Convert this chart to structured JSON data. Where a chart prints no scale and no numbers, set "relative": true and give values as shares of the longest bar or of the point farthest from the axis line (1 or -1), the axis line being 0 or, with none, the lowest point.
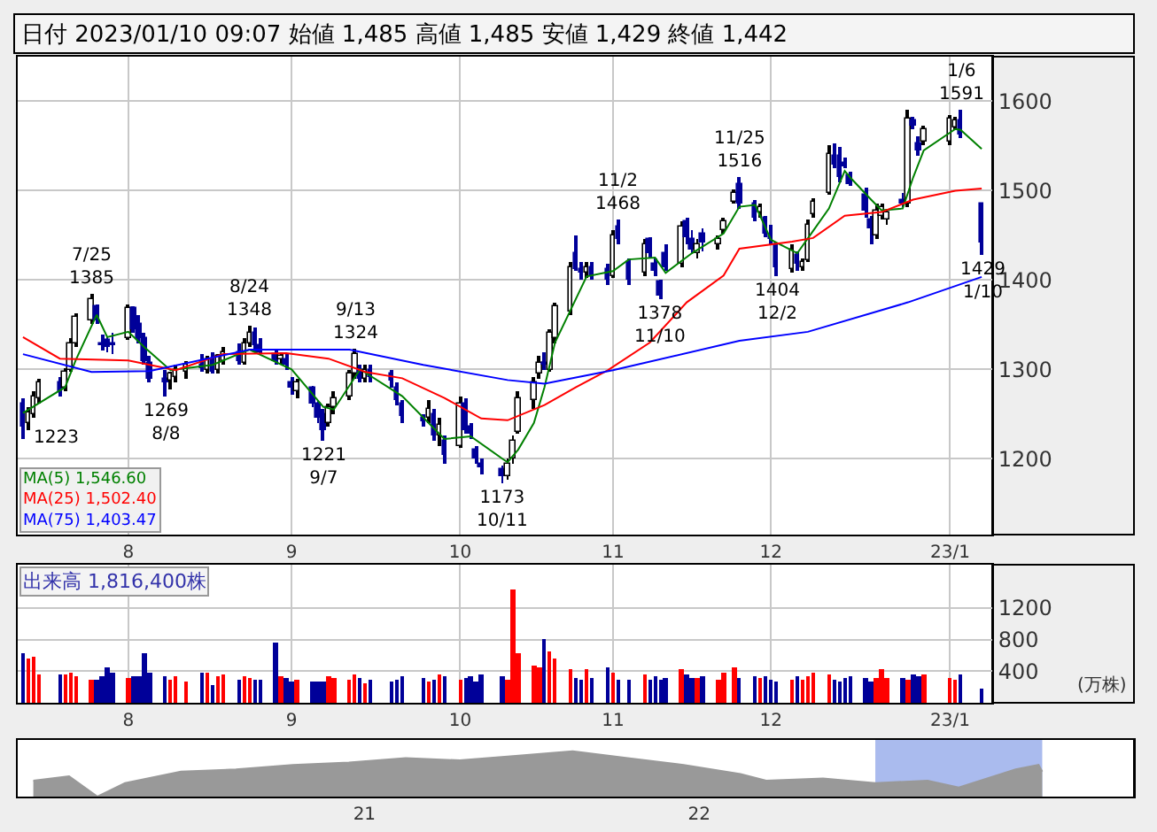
{
  "chart_data": [
    {
      "type": "candlestick",
      "title": "日付 2023/01/10 09:07 始値 1,485 高値 1,485 安値 1,429 終値 1,442",
      "x": [
        "2022-07-12",
        "2022-07-13",
        "2022-07-14",
        "2022-07-15",
        "2022-07-19",
        "2022-07-20",
        "2022-07-21",
        "2022-07-22",
        "2022-07-25",
        "2022-07-26",
        "2022-07-27",
        "2022-07-28",
        "2022-07-29",
        "2022-08-01",
        "2022-08-02",
        "2022-08-03",
        "2022-08-04",
        "2022-08-05",
        "2022-08-08",
        "2022-08-09",
        "2022-08-10",
        "2022-08-12",
        "2022-08-15",
        "2022-08-16",
        "2022-08-17",
        "2022-08-18",
        "2022-08-19",
        "2022-08-22",
        "2022-08-23",
        "2022-08-24",
        "2022-08-25",
        "2022-08-26",
        "2022-08-29",
        "2022-08-30",
        "2022-08-31",
        "2022-09-01",
        "2022-09-02",
        "2022-09-05",
        "2022-09-06",
        "2022-09-07",
        "2022-09-08",
        "2022-09-09",
        "2022-09-12",
        "2022-09-13",
        "2022-09-14",
        "2022-09-15",
        "2022-09-16",
        "2022-09-20",
        "2022-09-21",
        "2022-09-22",
        "2022-09-26",
        "2022-09-27",
        "2022-09-28",
        "2022-09-29",
        "2022-09-30",
        "2022-10-03",
        "2022-10-04",
        "2022-10-05",
        "2022-10-06",
        "2022-10-07",
        "2022-10-11",
        "2022-10-12",
        "2022-10-13",
        "2022-10-14",
        "2022-10-17",
        "2022-10-18",
        "2022-10-19",
        "2022-10-20",
        "2022-10-21",
        "2022-10-24",
        "2022-10-25",
        "2022-10-26",
        "2022-10-27",
        "2022-10-28",
        "2022-10-31",
        "2022-11-01",
        "2022-11-02",
        "2022-11-04",
        "2022-11-07",
        "2022-11-08",
        "2022-11-09",
        "2022-11-10",
        "2022-11-11",
        "2022-11-14",
        "2022-11-15",
        "2022-11-16",
        "2022-11-17",
        "2022-11-18",
        "2022-11-21",
        "2022-11-22",
        "2022-11-24",
        "2022-11-25",
        "2022-11-28",
        "2022-11-29",
        "2022-11-30",
        "2022-12-01",
        "2022-12-02",
        "2022-12-05",
        "2022-12-06",
        "2022-12-07",
        "2022-12-08",
        "2022-12-09",
        "2022-12-12",
        "2022-12-13",
        "2022-12-14",
        "2022-12-15",
        "2022-12-16",
        "2022-12-19",
        "2022-12-20",
        "2022-12-21",
        "2022-12-22",
        "2022-12-23",
        "2022-12-26",
        "2022-12-27",
        "2022-12-28",
        "2022-12-29",
        "2022-12-30",
        "2023-01-04",
        "2023-01-05",
        "2023-01-06",
        "2023-01-10"
      ],
      "ohlc": [
        [
          1262,
          1268,
          1223,
          1235
        ],
        [
          1240,
          1258,
          1232,
          1252
        ],
        [
          1250,
          1275,
          1245,
          1270
        ],
        [
          1268,
          1290,
          1262,
          1285
        ],
        [
          1285,
          1292,
          1270,
          1275
        ],
        [
          1280,
          1302,
          1275,
          1298
        ],
        [
          1300,
          1335,
          1298,
          1330
        ],
        [
          1330,
          1362,
          1325,
          1358
        ],
        [
          1355,
          1385,
          1350,
          1378
        ],
        [
          1370,
          1372,
          1350,
          1355
        ],
        [
          1330,
          1338,
          1322,
          1328
        ],
        [
          1332,
          1336,
          1320,
          1325
        ],
        [
          1330,
          1340,
          1318,
          1328
        ],
        [
          1335,
          1372,
          1332,
          1368
        ],
        [
          1368,
          1370,
          1340,
          1345
        ],
        [
          1350,
          1360,
          1330,
          1335
        ],
        [
          1335,
          1340,
          1305,
          1310
        ],
        [
          1308,
          1315,
          1285,
          1290
        ],
        [
          1290,
          1300,
          1269,
          1285
        ],
        [
          1288,
          1298,
          1278,
          1295
        ],
        [
          1292,
          1305,
          1285,
          1300
        ],
        [
          1298,
          1310,
          1290,
          1305
        ],
        [
          1305,
          1318,
          1298,
          1302
        ],
        [
          1300,
          1315,
          1295,
          1312
        ],
        [
          1312,
          1320,
          1295,
          1298
        ],
        [
          1300,
          1318,
          1296,
          1315
        ],
        [
          1310,
          1325,
          1305,
          1320
        ],
        [
          1320,
          1330,
          1305,
          1310
        ],
        [
          1308,
          1335,
          1305,
          1330
        ],
        [
          1330,
          1348,
          1325,
          1340
        ],
        [
          1340,
          1346,
          1320,
          1328
        ],
        [
          1328,
          1335,
          1318,
          1320
        ],
        [
          1318,
          1322,
          1305,
          1310
        ],
        [
          1312,
          1320,
          1305,
          1315
        ],
        [
          1312,
          1318,
          1300,
          1305
        ],
        [
          1285,
          1292,
          1272,
          1280
        ],
        [
          1275,
          1290,
          1268,
          1285
        ],
        [
          1280,
          1282,
          1258,
          1262
        ],
        [
          1262,
          1265,
          1240,
          1245
        ],
        [
          1250,
          1255,
          1221,
          1232
        ],
        [
          1240,
          1262,
          1235,
          1258
        ],
        [
          1258,
          1275,
          1250,
          1268
        ],
        [
          1270,
          1300,
          1265,
          1295
        ],
        [
          1295,
          1324,
          1290,
          1318
        ],
        [
          1300,
          1305,
          1285,
          1290
        ],
        [
          1290,
          1305,
          1285,
          1300
        ],
        [
          1300,
          1305,
          1285,
          1292
        ],
        [
          1295,
          1300,
          1280,
          1288
        ],
        [
          1280,
          1285,
          1260,
          1265
        ],
        [
          1262,
          1265,
          1240,
          1248
        ],
        [
          1245,
          1250,
          1235,
          1242
        ],
        [
          1245,
          1265,
          1240,
          1255
        ],
        [
          1250,
          1255,
          1220,
          1225
        ],
        [
          1225,
          1245,
          1215,
          1238
        ],
        [
          1220,
          1225,
          1195,
          1205
        ],
        [
          1215,
          1270,
          1212,
          1262
        ],
        [
          1262,
          1268,
          1228,
          1232
        ],
        [
          1235,
          1240,
          1222,
          1228
        ],
        [
          1210,
          1215,
          1195,
          1200
        ],
        [
          1195,
          1200,
          1182,
          1190
        ],
        [
          1188,
          1192,
          1173,
          1180
        ],
        [
          1180,
          1200,
          1176,
          1195
        ],
        [
          1200,
          1225,
          1195,
          1220
        ],
        [
          1230,
          1275,
          1228,
          1268
        ],
        [
          1265,
          1292,
          1255,
          1285
        ],
        [
          1295,
          1315,
          1290,
          1308
        ],
        [
          1308,
          1320,
          1300,
          1305
        ],
        [
          1300,
          1345,
          1298,
          1340
        ],
        [
          1335,
          1375,
          1330,
          1370
        ],
        [
          1365,
          1420,
          1360,
          1415
        ],
        [
          1430,
          1450,
          1410,
          1412
        ],
        [
          1412,
          1420,
          1400,
          1408
        ],
        [
          1408,
          1420,
          1402,
          1415
        ],
        [
          1415,
          1420,
          1400,
          1405
        ],
        [
          1412,
          1418,
          1395,
          1400
        ],
        [
          1405,
          1455,
          1402,
          1450
        ],
        [
          1460,
          1468,
          1440,
          1445
        ],
        [
          1420,
          1425,
          1395,
          1400
        ],
        [
          1408,
          1445,
          1405,
          1440
        ],
        [
          1445,
          1448,
          1425,
          1430
        ],
        [
          1418,
          1425,
          1405,
          1410
        ],
        [
          1398,
          1400,
          1378,
          1382
        ],
        [
          1430,
          1440,
          1410,
          1415
        ],
        [
          1418,
          1465,
          1415,
          1460
        ],
        [
          1465,
          1470,
          1440,
          1448
        ],
        [
          1445,
          1455,
          1430,
          1435
        ],
        [
          1430,
          1445,
          1425,
          1440
        ],
        [
          1452,
          1458,
          1432,
          1442
        ],
        [
          1440,
          1450,
          1435,
          1445
        ],
        [
          1455,
          1470,
          1452,
          1466
        ],
        [
          1488,
          1502,
          1485,
          1498
        ],
        [
          1508,
          1516,
          1480,
          1485
        ],
        [
          1485,
          1490,
          1465,
          1470
        ],
        [
          1475,
          1485,
          1470,
          1482
        ],
        [
          1470,
          1472,
          1448,
          1452
        ],
        [
          1450,
          1462,
          1440,
          1445
        ],
        [
          1440,
          1442,
          1404,
          1415
        ],
        [
          1412,
          1440,
          1408,
          1435
        ],
        [
          1428,
          1432,
          1410,
          1418
        ],
        [
          1415,
          1425,
          1410,
          1420
        ],
        [
          1422,
          1468,
          1420,
          1462
        ],
        [
          1474,
          1492,
          1470,
          1488
        ],
        [
          1498,
          1550,
          1495,
          1542
        ],
        [
          1540,
          1552,
          1525,
          1530
        ],
        [
          1540,
          1548,
          1510,
          1515
        ],
        [
          1532,
          1538,
          1525,
          1528
        ],
        [
          1518,
          1522,
          1505,
          1508
        ],
        [
          1495,
          1503,
          1470,
          1478
        ],
        [
          1468,
          1472,
          1440,
          1458
        ],
        [
          1450,
          1485,
          1445,
          1478
        ],
        [
          1472,
          1485,
          1468,
          1482
        ],
        [
          1468,
          1480,
          1462,
          1475
        ],
        [
          1490,
          1498,
          1482,
          1485
        ],
        [
          1485,
          1590,
          1482,
          1580
        ],
        [
          1578,
          1582,
          1568,
          1572
        ],
        [
          1552,
          1560,
          1540,
          1545
        ],
        [
          1555,
          1572,
          1550,
          1568
        ],
        [
          1555,
          1585,
          1550,
          1580
        ],
        [
          1570,
          1582,
          1568,
          1578
        ],
        [
          1578,
          1591,
          1558,
          1562
        ],
        [
          1485,
          1485,
          1429,
          1442
        ]
      ],
      "series": [
        {
          "type": "line",
          "name": "MA(5) 1,546.60",
          "color": "#008000",
          "x": [
            "2022-07-12",
            "2022-07-15",
            "2022-07-20",
            "2022-07-22",
            "2022-07-26",
            "2022-07-28",
            "2022-08-01",
            "2022-08-04",
            "2022-08-09",
            "2022-08-17",
            "2022-08-24",
            "2022-09-01",
            "2022-09-07",
            "2022-09-09",
            "2022-09-14",
            "2022-09-22",
            "2022-09-30",
            "2022-10-05",
            "2022-10-11",
            "2022-10-12",
            "2022-10-14",
            "2022-10-17",
            "2022-10-19",
            "2022-10-21",
            "2022-10-27",
            "2022-11-01",
            "2022-11-04",
            "2022-11-09",
            "2022-11-11",
            "2022-11-16",
            "2022-11-22",
            "2022-11-25",
            "2022-11-28",
            "2022-12-01",
            "2022-12-06",
            "2022-12-09",
            "2022-12-12",
            "2022-12-15",
            "2022-12-16",
            "2022-12-20",
            "2022-12-22",
            "2022-12-26",
            "2022-12-28",
            "2022-12-30",
            "2023-01-05",
            "2023-01-06",
            "2023-01-10"
          ],
          "values": [
            1251,
            1262,
            1280,
            1310,
            1361,
            1336,
            1342,
            1325,
            1299,
            1305,
            1322,
            1300,
            1258,
            1255,
            1300,
            1270,
            1222,
            1225,
            1200,
            1196,
            1210,
            1240,
            1280,
            1330,
            1404,
            1410,
            1423,
            1425,
            1408,
            1430,
            1452,
            1482,
            1484,
            1445,
            1430,
            1455,
            1480,
            1522,
            1515,
            1490,
            1478,
            1480,
            1515,
            1545,
            1569,
            1568,
            1546.6
          ]
        },
        {
          "type": "line",
          "name": "MA(25) 1,502.40",
          "color": "#ff0000",
          "x": [
            "2022-07-12",
            "2022-07-19",
            "2022-08-01",
            "2022-08-10",
            "2022-08-19",
            "2022-08-31",
            "2022-09-08",
            "2022-09-15",
            "2022-09-22",
            "2022-09-30",
            "2022-10-07",
            "2022-10-12",
            "2022-10-19",
            "2022-10-25",
            "2022-10-31",
            "2022-11-08",
            "2022-11-15",
            "2022-11-22",
            "2022-11-25",
            "2022-12-05",
            "2022-12-09",
            "2022-12-15",
            "2022-12-22",
            "2022-12-28",
            "2023-01-05",
            "2023-01-10"
          ],
          "values": [
            1336,
            1312,
            1310,
            1299,
            1317,
            1318,
            1312,
            1297,
            1290,
            1268,
            1245,
            1243,
            1260,
            1280,
            1299,
            1330,
            1375,
            1405,
            1435,
            1443,
            1447,
            1472,
            1476,
            1490,
            1500,
            1502.4
          ]
        },
        {
          "type": "line",
          "name": "MA(75) 1,403.47",
          "color": "#0000ff",
          "x": [
            "2022-07-12",
            "2022-07-25",
            "2022-08-05",
            "2022-08-24",
            "2022-09-12",
            "2022-09-26",
            "2022-10-12",
            "2022-10-19",
            "2022-11-01",
            "2022-11-25",
            "2022-12-08",
            "2022-12-27",
            "2023-01-10"
          ],
          "values": [
            1317,
            1297,
            1298,
            1322,
            1322,
            1305,
            1288,
            1284,
            1299,
            1332,
            1342,
            1375,
            1403.47
          ]
        }
      ],
      "annotations": [
        {
          "text": "1223",
          "x": "2022-07-12",
          "y": 1223
        },
        {
          "text": "7/25\n1385",
          "x": "2022-07-25",
          "y": 1385
        },
        {
          "text": "1269\n8/8",
          "x": "2022-08-08",
          "y": 1269
        },
        {
          "text": "8/24\n1348",
          "x": "2022-08-24",
          "y": 1348
        },
        {
          "text": "1221\n9/7",
          "x": "2022-09-07",
          "y": 1221
        },
        {
          "text": "9/13\n1324",
          "x": "2022-09-13",
          "y": 1324
        },
        {
          "text": "1173\n10/11",
          "x": "2022-10-11",
          "y": 1173
        },
        {
          "text": "11/2\n1468",
          "x": "2022-11-02",
          "y": 1468
        },
        {
          "text": "1378\n11/10",
          "x": "2022-11-10",
          "y": 1378
        },
        {
          "text": "11/25\n1516",
          "x": "2022-11-25",
          "y": 1516
        },
        {
          "text": "1404\n12/2",
          "x": "2022-12-02",
          "y": 1404
        },
        {
          "text": "1/6\n1591",
          "x": "2023-01-06",
          "y": 1591
        },
        {
          "text": "1429\n1/10",
          "x": "2023-01-10",
          "y": 1429
        }
      ],
      "xlim": [
        "2022-07-11",
        "2023-01-12"
      ],
      "xticks": [
        {
          "value": "2022-08-01",
          "label": "8"
        },
        {
          "value": "2022-09-01",
          "label": "9"
        },
        {
          "value": "2022-10-03",
          "label": "10"
        },
        {
          "value": "2022-11-01",
          "label": "11"
        },
        {
          "value": "2022-12-01",
          "label": "12"
        },
        {
          "value": "2023-01-04",
          "label": "23/1"
        }
      ],
      "ylim": [
        1115,
        1650
      ],
      "yticks": [
        1200,
        1300,
        1400,
        1500,
        1600
      ],
      "grid": true,
      "legend": "bottom left"
    },
    {
      "type": "bar",
      "x": [
        "2022-07-12",
        "2022-07-13",
        "2022-07-14",
        "2022-07-15",
        "2022-07-19",
        "2022-07-20",
        "2022-07-21",
        "2022-07-22",
        "2022-07-25",
        "2022-07-26",
        "2022-07-27",
        "2022-07-28",
        "2022-07-29",
        "2022-08-01",
        "2022-08-02",
        "2022-08-03",
        "2022-08-04",
        "2022-08-05",
        "2022-08-08",
        "2022-08-09",
        "2022-08-10",
        "2022-08-12",
        "2022-08-15",
        "2022-08-16",
        "2022-08-17",
        "2022-08-18",
        "2022-08-19",
        "2022-08-22",
        "2022-08-23",
        "2022-08-24",
        "2022-08-25",
        "2022-08-26",
        "2022-08-29",
        "2022-08-30",
        "2022-08-31",
        "2022-09-01",
        "2022-09-02",
        "2022-09-05",
        "2022-09-06",
        "2022-09-07",
        "2022-09-08",
        "2022-09-09",
        "2022-09-12",
        "2022-09-13",
        "2022-09-14",
        "2022-09-15",
        "2022-09-16",
        "2022-09-20",
        "2022-09-21",
        "2022-09-22",
        "2022-09-26",
        "2022-09-27",
        "2022-09-28",
        "2022-09-29",
        "2022-09-30",
        "2022-10-03",
        "2022-10-04",
        "2022-10-05",
        "2022-10-06",
        "2022-10-07",
        "2022-10-11",
        "2022-10-12",
        "2022-10-13",
        "2022-10-14",
        "2022-10-17",
        "2022-10-18",
        "2022-10-19",
        "2022-10-20",
        "2022-10-21",
        "2022-10-24",
        "2022-10-25",
        "2022-10-26",
        "2022-10-27",
        "2022-10-28",
        "2022-10-31",
        "2022-11-01",
        "2022-11-02",
        "2022-11-04",
        "2022-11-07",
        "2022-11-08",
        "2022-11-09",
        "2022-11-10",
        "2022-11-11",
        "2022-11-14",
        "2022-11-15",
        "2022-11-16",
        "2022-11-17",
        "2022-11-18",
        "2022-11-21",
        "2022-11-22",
        "2022-11-24",
        "2022-11-25",
        "2022-11-28",
        "2022-11-29",
        "2022-11-30",
        "2022-12-01",
        "2022-12-02",
        "2022-12-05",
        "2022-12-06",
        "2022-12-07",
        "2022-12-08",
        "2022-12-09",
        "2022-12-12",
        "2022-12-13",
        "2022-12-14",
        "2022-12-15",
        "2022-12-16",
        "2022-12-19",
        "2022-12-20",
        "2022-12-21",
        "2022-12-22",
        "2022-12-23",
        "2022-12-26",
        "2022-12-27",
        "2022-12-28",
        "2022-12-29",
        "2022-12-30",
        "2023-01-04",
        "2023-01-05",
        "2023-01-06",
        "2023-01-10"
      ],
      "values": [
        620,
        560,
        585,
        365,
        365,
        350,
        380,
        340,
        300,
        300,
        330,
        440,
        380,
        320,
        340,
        340,
        630,
        380,
        330,
        300,
        330,
        270,
        380,
        375,
        230,
        330,
        360,
        300,
        330,
        325,
        300,
        290,
        760,
        340,
        320,
        270,
        300,
        280,
        265,
        270,
        330,
        320,
        300,
        350,
        310,
        245,
        300,
        260,
        290,
        330,
        310,
        270,
        300,
        360,
        340,
        300,
        320,
        330,
        280,
        360,
        330,
        290,
        1445,
        620,
        475,
        460,
        800,
        640,
        550,
        420,
        310,
        300,
        420,
        310,
        440,
        390,
        300,
        300,
        350,
        300,
        340,
        290,
        310,
        420,
        370,
        320,
        320,
        330,
        300,
        390,
        460,
        320,
        330,
        310,
        330,
        290,
        280,
        300,
        330,
        300,
        330,
        380,
        370,
        300,
        280,
        310,
        330,
        310,
        280,
        310,
        420,
        310,
        320,
        290,
        360,
        330,
        370,
        320,
        300,
        360,
        182
      ],
      "colors": [
        "#000099",
        "#ff0000",
        "#ff0000",
        "#ff0000",
        "#000099",
        "#ff0000",
        "#ff0000",
        "#ff0000",
        "#ff0000",
        "#000099",
        "#000099",
        "#000099",
        "#000099",
        "#ff0000",
        "#000099",
        "#000099",
        "#000099",
        "#000099",
        "#000099",
        "#ff0000",
        "#ff0000",
        "#ff0000",
        "#000099",
        "#ff0000",
        "#000099",
        "#ff0000",
        "#ff0000",
        "#000099",
        "#ff0000",
        "#ff0000",
        "#000099",
        "#000099",
        "#000099",
        "#ff0000",
        "#000099",
        "#000099",
        "#ff0000",
        "#000099",
        "#000099",
        "#000099",
        "#ff0000",
        "#ff0000",
        "#ff0000",
        "#ff0000",
        "#000099",
        "#ff0000",
        "#000099",
        "#000099",
        "#000099",
        "#000099",
        "#000099",
        "#ff0000",
        "#000099",
        "#ff0000",
        "#000099",
        "#ff0000",
        "#000099",
        "#000099",
        "#000099",
        "#000099",
        "#000099",
        "#ff0000",
        "#ff0000",
        "#ff0000",
        "#ff0000",
        "#ff0000",
        "#000099",
        "#ff0000",
        "#ff0000",
        "#ff0000",
        "#000099",
        "#000099",
        "#ff0000",
        "#000099",
        "#000099",
        "#ff0000",
        "#000099",
        "#000099",
        "#ff0000",
        "#000099",
        "#000099",
        "#000099",
        "#000099",
        "#ff0000",
        "#000099",
        "#000099",
        "#ff0000",
        "#000099",
        "#ff0000",
        "#ff0000",
        "#ff0000",
        "#000099",
        "#000099",
        "#ff0000",
        "#000099",
        "#000099",
        "#000099",
        "#ff0000",
        "#000099",
        "#ff0000",
        "#ff0000",
        "#ff0000",
        "#ff0000",
        "#000099",
        "#000099",
        "#000099",
        "#000099",
        "#000099",
        "#000099",
        "#ff0000",
        "#ff0000",
        "#ff0000",
        "#000099",
        "#ff0000",
        "#000099",
        "#000099",
        "#ff0000",
        "#ff0000",
        "#ff0000",
        "#000099",
        "#000099"
      ],
      "annotations": [
        "出来高 1,816,400株"
      ],
      "ylabel": "(万株)",
      "xlim": [
        "2022-07-11",
        "2023-01-12"
      ],
      "xticks": [
        {
          "value": "2022-08-01",
          "label": "8"
        },
        {
          "value": "2022-09-01",
          "label": "9"
        },
        {
          "value": "2022-10-03",
          "label": "10"
        },
        {
          "value": "2022-11-01",
          "label": "11"
        },
        {
          "value": "2022-12-01",
          "label": "12"
        },
        {
          "value": "2023-01-04",
          "label": "23/1"
        }
      ],
      "ylim": [
        0,
        1750
      ],
      "yticks": [
        400,
        800,
        1200
      ],
      "grid": true
    },
    {
      "type": "area",
      "relative": true,
      "color": "#999999",
      "x": [
        "2020-01-06",
        "2020-02-14",
        "2020-03-16",
        "2020-04-15",
        "2020-06-15",
        "2020-08-14",
        "2020-10-15",
        "2020-12-15",
        "2021-02-15",
        "2021-04-15",
        "2021-06-15",
        "2021-08-16",
        "2021-10-15",
        "2021-12-15",
        "2022-02-15",
        "2022-03-15",
        "2022-05-16",
        "2022-07-12",
        "2022-09-07",
        "2022-10-11",
        "2022-12-12",
        "2023-01-06",
        "2023-01-10"
      ],
      "values": [
        0.35,
        0.45,
        0,
        0.3,
        0.55,
        0.6,
        0.7,
        0.75,
        0.85,
        0.8,
        0.9,
        1,
        0.85,
        0.7,
        0.5,
        0.35,
        0.4,
        0.3,
        0.35,
        0.2,
        0.6,
        0.7,
        0.55
      ],
      "bands": [
        {
          "axis": "x",
          "from": "2022-07-12",
          "to": "2023-01-10",
          "color": "#aabbee"
        }
      ],
      "xlim": [
        "2019-12-20",
        "2023-04-20"
      ],
      "xticks": [
        {
          "value": "2021-01-01",
          "label": "21"
        },
        {
          "value": "2022-01-01",
          "label": "22"
        }
      ]
    }
  ]
}
